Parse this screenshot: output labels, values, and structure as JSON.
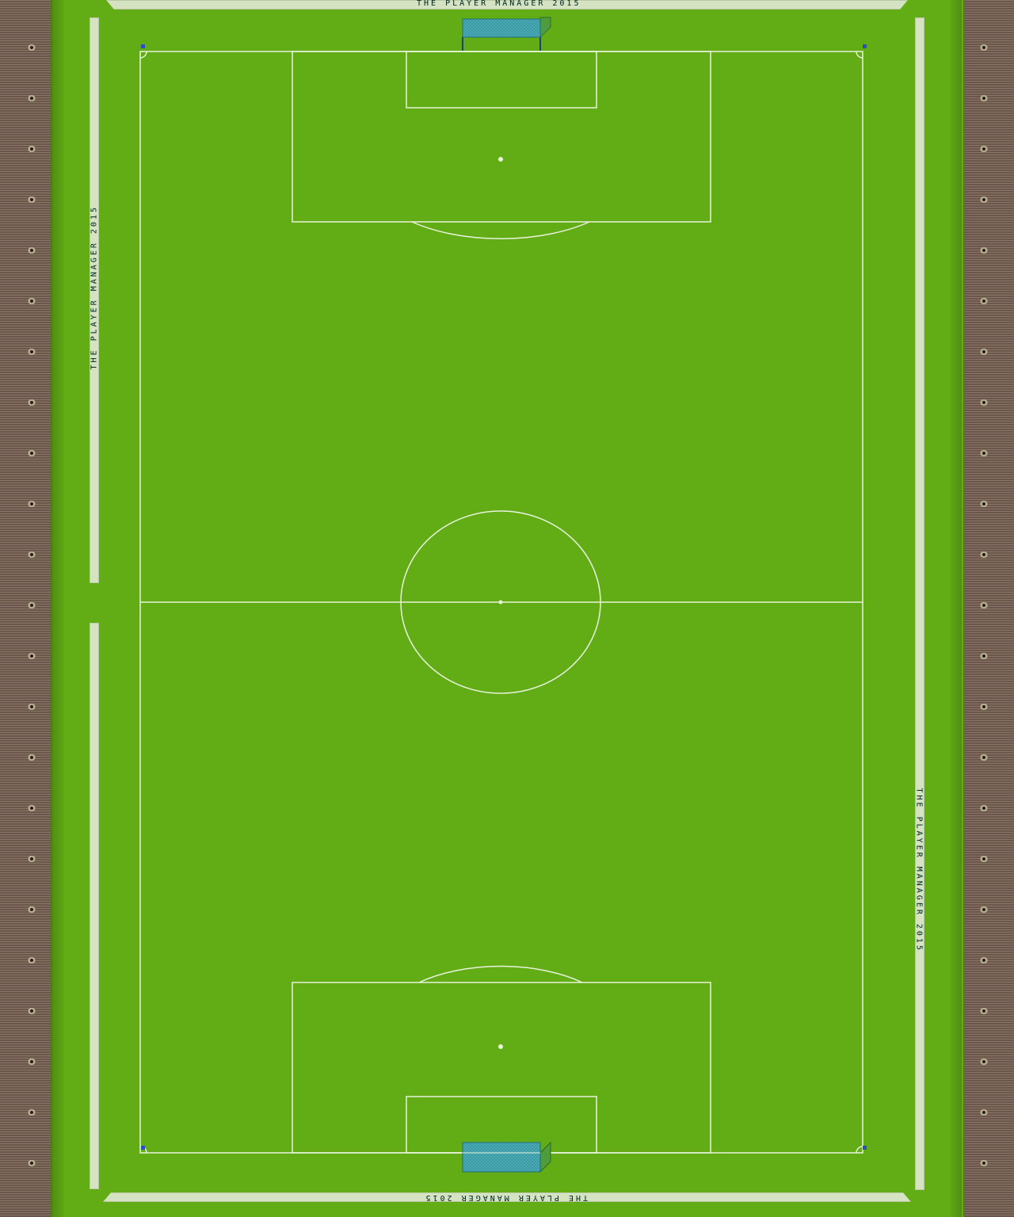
{
  "game": {
    "title": "THE PLAYER MANAGER 2015"
  },
  "boards": {
    "top": "THE PLAYER MANAGER 2015",
    "bottom": "THE PLAYER MANAGER 2015",
    "left": "THE PLAYER MANAGER 2015",
    "right": "THE PLAYER MANAGER 2015"
  },
  "colors": {
    "grass": "#62ad16",
    "lines": "#e8f2dc",
    "goal_net": "#3a9aa6",
    "stands": "#7a6558",
    "ad_board": "#d6e3c2"
  }
}
